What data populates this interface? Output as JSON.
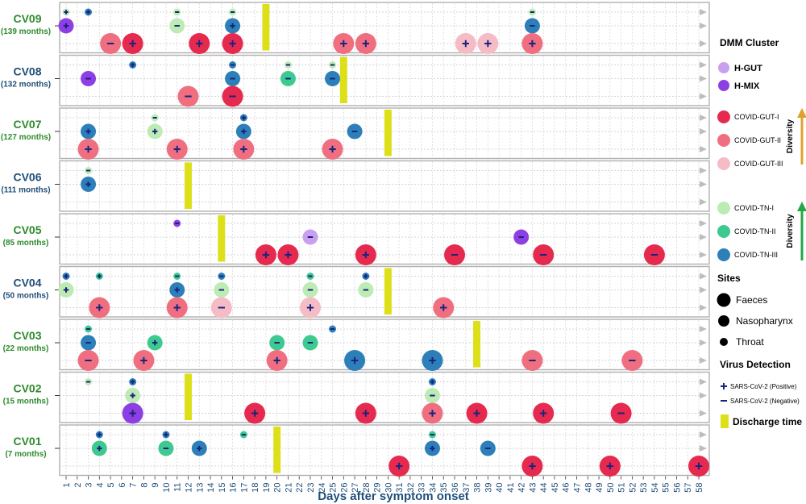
{
  "chart_data": {
    "type": "scatter",
    "xlabel": "Days after symptom onset",
    "x_ticks": [
      1,
      2,
      3,
      4,
      5,
      6,
      7,
      8,
      9,
      10,
      11,
      12,
      13,
      14,
      15,
      16,
      17,
      18,
      19,
      20,
      21,
      22,
      23,
      24,
      25,
      26,
      27,
      28,
      29,
      30,
      31,
      32,
      33,
      34,
      35,
      36,
      37,
      38,
      39,
      40,
      41,
      42,
      43,
      44,
      45,
      46,
      47,
      48,
      49,
      50,
      51,
      52,
      53,
      54,
      55,
      56,
      57,
      58
    ],
    "site_rows": [
      "Throat",
      "Nasopharynx",
      "Faeces"
    ],
    "patients": [
      {
        "id": "CV09",
        "age": "(139 months)",
        "discharge_day": 19,
        "samples": [
          {
            "site": "Throat",
            "day": 1,
            "cluster": "COVID-TN-I",
            "virus": "Positive"
          },
          {
            "site": "Throat",
            "day": 3,
            "cluster": "COVID-TN-III",
            "virus": "Positive"
          },
          {
            "site": "Throat",
            "day": 11,
            "cluster": "COVID-TN-I",
            "virus": "Negative"
          },
          {
            "site": "Throat",
            "day": 16,
            "cluster": "COVID-TN-I",
            "virus": "Negative"
          },
          {
            "site": "Throat",
            "day": 43,
            "cluster": "COVID-TN-I",
            "virus": "Negative"
          },
          {
            "site": "Nasopharynx",
            "day": 1,
            "cluster": "H-MIX",
            "virus": "Positive"
          },
          {
            "site": "Nasopharynx",
            "day": 11,
            "cluster": "COVID-TN-I",
            "virus": "Negative"
          },
          {
            "site": "Nasopharynx",
            "day": 16,
            "cluster": "COVID-TN-III",
            "virus": "Positive"
          },
          {
            "site": "Nasopharynx",
            "day": 43,
            "cluster": "COVID-TN-III",
            "virus": "Negative"
          },
          {
            "site": "Faeces",
            "day": 5,
            "cluster": "COVID-GUT-II",
            "virus": "Negative"
          },
          {
            "site": "Faeces",
            "day": 7,
            "cluster": "COVID-GUT-I",
            "virus": "Positive"
          },
          {
            "site": "Faeces",
            "day": 13,
            "cluster": "COVID-GUT-I",
            "virus": "Positive"
          },
          {
            "site": "Faeces",
            "day": 16,
            "cluster": "COVID-GUT-I",
            "virus": "Positive"
          },
          {
            "site": "Faeces",
            "day": 26,
            "cluster": "COVID-GUT-II",
            "virus": "Positive"
          },
          {
            "site": "Faeces",
            "day": 28,
            "cluster": "COVID-GUT-II",
            "virus": "Positive"
          },
          {
            "site": "Faeces",
            "day": 37,
            "cluster": "COVID-GUT-III",
            "virus": "Positive"
          },
          {
            "site": "Faeces",
            "day": 39,
            "cluster": "COVID-GUT-III",
            "virus": "Positive"
          },
          {
            "site": "Faeces",
            "day": 43,
            "cluster": "COVID-GUT-II",
            "virus": "Positive"
          }
        ]
      },
      {
        "id": "CV08",
        "age": "(132 months)",
        "discharge_day": 26,
        "samples": [
          {
            "site": "Throat",
            "day": 7,
            "cluster": "COVID-TN-III",
            "virus": "Positive"
          },
          {
            "site": "Throat",
            "day": 16,
            "cluster": "COVID-TN-III",
            "virus": "Negative"
          },
          {
            "site": "Throat",
            "day": 21,
            "cluster": "COVID-TN-I",
            "virus": "Negative"
          },
          {
            "site": "Throat",
            "day": 25,
            "cluster": "COVID-TN-I",
            "virus": "Negative"
          },
          {
            "site": "Nasopharynx",
            "day": 3,
            "cluster": "H-MIX",
            "virus": "Negative"
          },
          {
            "site": "Nasopharynx",
            "day": 16,
            "cluster": "COVID-TN-III",
            "virus": "Negative"
          },
          {
            "site": "Nasopharynx",
            "day": 21,
            "cluster": "COVID-TN-II",
            "virus": "Negative"
          },
          {
            "site": "Nasopharynx",
            "day": 25,
            "cluster": "COVID-TN-III",
            "virus": "Negative"
          },
          {
            "site": "Faeces",
            "day": 12,
            "cluster": "COVID-GUT-II",
            "virus": "Negative"
          },
          {
            "site": "Faeces",
            "day": 16,
            "cluster": "COVID-GUT-I",
            "virus": "Negative"
          }
        ]
      },
      {
        "id": "CV07",
        "age": "(127 months)",
        "discharge_day": 30,
        "samples": [
          {
            "site": "Throat",
            "day": 9,
            "cluster": "COVID-TN-I",
            "virus": "Negative"
          },
          {
            "site": "Throat",
            "day": 17,
            "cluster": "COVID-TN-III",
            "virus": "Positive"
          },
          {
            "site": "Nasopharynx",
            "day": 3,
            "cluster": "COVID-TN-III",
            "virus": "Positive"
          },
          {
            "site": "Nasopharynx",
            "day": 9,
            "cluster": "COVID-TN-I",
            "virus": "Positive"
          },
          {
            "site": "Nasopharynx",
            "day": 17,
            "cluster": "COVID-TN-III",
            "virus": "Positive"
          },
          {
            "site": "Nasopharynx",
            "day": 27,
            "cluster": "COVID-TN-III",
            "virus": "Negative"
          },
          {
            "site": "Faeces",
            "day": 3,
            "cluster": "COVID-GUT-II",
            "virus": "Positive"
          },
          {
            "site": "Faeces",
            "day": 11,
            "cluster": "COVID-GUT-II",
            "virus": "Positive"
          },
          {
            "site": "Faeces",
            "day": 17,
            "cluster": "COVID-GUT-II",
            "virus": "Positive"
          },
          {
            "site": "Faeces",
            "day": 25,
            "cluster": "COVID-GUT-II",
            "virus": "Positive"
          }
        ]
      },
      {
        "id": "CV06",
        "age": "(111 months)",
        "discharge_day": 12,
        "samples": [
          {
            "site": "Throat",
            "day": 3,
            "cluster": "COVID-TN-I",
            "virus": "Negative"
          },
          {
            "site": "Nasopharynx",
            "day": 3,
            "cluster": "COVID-TN-III",
            "virus": "Positive"
          }
        ]
      },
      {
        "id": "CV05",
        "age": "(85 months)",
        "discharge_day": 15,
        "samples": [
          {
            "site": "Throat",
            "day": 11,
            "cluster": "H-MIX",
            "virus": "Negative"
          },
          {
            "site": "Nasopharynx",
            "day": 23,
            "cluster": "H-GUT",
            "virus": "Negative"
          },
          {
            "site": "Nasopharynx",
            "day": 42,
            "cluster": "H-MIX",
            "virus": "Negative"
          },
          {
            "site": "Faeces",
            "day": 19,
            "cluster": "COVID-GUT-I",
            "virus": "Positive"
          },
          {
            "site": "Faeces",
            "day": 21,
            "cluster": "COVID-GUT-I",
            "virus": "Positive"
          },
          {
            "site": "Faeces",
            "day": 28,
            "cluster": "COVID-GUT-I",
            "virus": "Positive"
          },
          {
            "site": "Faeces",
            "day": 36,
            "cluster": "COVID-GUT-I",
            "virus": "Negative"
          },
          {
            "site": "Faeces",
            "day": 44,
            "cluster": "COVID-GUT-I",
            "virus": "Negative"
          },
          {
            "site": "Faeces",
            "day": 54,
            "cluster": "COVID-GUT-I",
            "virus": "Negative"
          }
        ]
      },
      {
        "id": "CV04",
        "age": "(50 months)",
        "discharge_day": 30,
        "samples": [
          {
            "site": "Throat",
            "day": 1,
            "cluster": "COVID-TN-III",
            "virus": "Positive"
          },
          {
            "site": "Throat",
            "day": 4,
            "cluster": "COVID-TN-II",
            "virus": "Positive"
          },
          {
            "site": "Throat",
            "day": 11,
            "cluster": "COVID-TN-II",
            "virus": "Negative"
          },
          {
            "site": "Throat",
            "day": 15,
            "cluster": "COVID-TN-III",
            "virus": "Negative"
          },
          {
            "site": "Throat",
            "day": 23,
            "cluster": "COVID-TN-II",
            "virus": "Negative"
          },
          {
            "site": "Throat",
            "day": 28,
            "cluster": "COVID-TN-III",
            "virus": "Positive"
          },
          {
            "site": "Nasopharynx",
            "day": 1,
            "cluster": "COVID-TN-I",
            "virus": "Positive"
          },
          {
            "site": "Nasopharynx",
            "day": 11,
            "cluster": "COVID-TN-III",
            "virus": "Positive"
          },
          {
            "site": "Nasopharynx",
            "day": 15,
            "cluster": "COVID-TN-I",
            "virus": "Negative"
          },
          {
            "site": "Nasopharynx",
            "day": 23,
            "cluster": "COVID-TN-I",
            "virus": "Negative"
          },
          {
            "site": "Nasopharynx",
            "day": 28,
            "cluster": "COVID-TN-I",
            "virus": "Negative"
          },
          {
            "site": "Faeces",
            "day": 4,
            "cluster": "COVID-GUT-II",
            "virus": "Positive"
          },
          {
            "site": "Faeces",
            "day": 11,
            "cluster": "COVID-GUT-II",
            "virus": "Positive"
          },
          {
            "site": "Faeces",
            "day": 15,
            "cluster": "COVID-GUT-III",
            "virus": "Negative"
          },
          {
            "site": "Faeces",
            "day": 23,
            "cluster": "COVID-GUT-III",
            "virus": "Positive"
          },
          {
            "site": "Faeces",
            "day": 35,
            "cluster": "COVID-GUT-II",
            "virus": "Positive"
          }
        ]
      },
      {
        "id": "CV03",
        "age": "(22 months)",
        "discharge_day": 38,
        "samples": [
          {
            "site": "Throat",
            "day": 3,
            "cluster": "COVID-TN-II",
            "virus": "Negative"
          },
          {
            "site": "Throat",
            "day": 25,
            "cluster": "COVID-TN-III",
            "virus": "Negative"
          },
          {
            "site": "Nasopharynx",
            "day": 3,
            "cluster": "COVID-TN-III",
            "virus": "Negative"
          },
          {
            "site": "Nasopharynx",
            "day": 9,
            "cluster": "COVID-TN-II",
            "virus": "Positive"
          },
          {
            "site": "Nasopharynx",
            "day": 20,
            "cluster": "COVID-TN-II",
            "virus": "Negative"
          },
          {
            "site": "Nasopharynx",
            "day": 23,
            "cluster": "COVID-TN-II",
            "virus": "Negative"
          },
          {
            "site": "Faeces",
            "day": 3,
            "cluster": "COVID-GUT-II",
            "virus": "Negative"
          },
          {
            "site": "Faeces",
            "day": 8,
            "cluster": "COVID-GUT-II",
            "virus": "Positive"
          },
          {
            "site": "Faeces",
            "day": 20,
            "cluster": "COVID-GUT-II",
            "virus": "Positive"
          },
          {
            "site": "Faeces",
            "day": 27,
            "cluster": "COVID-TN-III",
            "virus": "Positive"
          },
          {
            "site": "Faeces",
            "day": 34,
            "cluster": "COVID-TN-III",
            "virus": "Positive"
          },
          {
            "site": "Faeces",
            "day": 43,
            "cluster": "COVID-GUT-II",
            "virus": "Negative"
          },
          {
            "site": "Faeces",
            "day": 52,
            "cluster": "COVID-GUT-II",
            "virus": "Negative"
          }
        ]
      },
      {
        "id": "CV02",
        "age": "(15 months)",
        "discharge_day": 12,
        "samples": [
          {
            "site": "Throat",
            "day": 3,
            "cluster": "COVID-TN-I",
            "virus": "Negative"
          },
          {
            "site": "Throat",
            "day": 7,
            "cluster": "COVID-TN-III",
            "virus": "Positive"
          },
          {
            "site": "Throat",
            "day": 34,
            "cluster": "COVID-TN-III",
            "virus": "Positive"
          },
          {
            "site": "Nasopharynx",
            "day": 7,
            "cluster": "COVID-TN-I",
            "virus": "Positive"
          },
          {
            "site": "Nasopharynx",
            "day": 34,
            "cluster": "COVID-TN-I",
            "virus": "Negative"
          },
          {
            "site": "Faeces",
            "day": 7,
            "cluster": "H-MIX",
            "virus": "Positive"
          },
          {
            "site": "Faeces",
            "day": 18,
            "cluster": "COVID-GUT-I",
            "virus": "Positive"
          },
          {
            "site": "Faeces",
            "day": 28,
            "cluster": "COVID-GUT-I",
            "virus": "Positive"
          },
          {
            "site": "Faeces",
            "day": 34,
            "cluster": "COVID-GUT-II",
            "virus": "Positive"
          },
          {
            "site": "Faeces",
            "day": 38,
            "cluster": "COVID-GUT-I",
            "virus": "Positive"
          },
          {
            "site": "Faeces",
            "day": 44,
            "cluster": "COVID-GUT-I",
            "virus": "Positive"
          },
          {
            "site": "Faeces",
            "day": 51,
            "cluster": "COVID-GUT-I",
            "virus": "Negative"
          }
        ]
      },
      {
        "id": "CV01",
        "age": "(7 months)",
        "discharge_day": 20,
        "samples": [
          {
            "site": "Throat",
            "day": 4,
            "cluster": "COVID-TN-III",
            "virus": "Positive"
          },
          {
            "site": "Throat",
            "day": 10,
            "cluster": "COVID-TN-III",
            "virus": "Positive"
          },
          {
            "site": "Throat",
            "day": 17,
            "cluster": "COVID-TN-II",
            "virus": "Negative"
          },
          {
            "site": "Throat",
            "day": 34,
            "cluster": "COVID-TN-II",
            "virus": "Negative"
          },
          {
            "site": "Nasopharynx",
            "day": 4,
            "cluster": "COVID-TN-II",
            "virus": "Positive"
          },
          {
            "site": "Nasopharynx",
            "day": 10,
            "cluster": "COVID-TN-II",
            "virus": "Negative"
          },
          {
            "site": "Nasopharynx",
            "day": 13,
            "cluster": "COVID-TN-III",
            "virus": "Positive"
          },
          {
            "site": "Nasopharynx",
            "day": 34,
            "cluster": "COVID-TN-III",
            "virus": "Positive"
          },
          {
            "site": "Nasopharynx",
            "day": 39,
            "cluster": "COVID-TN-III",
            "virus": "Negative"
          },
          {
            "site": "Faeces",
            "day": 31,
            "cluster": "COVID-GUT-I",
            "virus": "Positive"
          },
          {
            "site": "Faeces",
            "day": 43,
            "cluster": "COVID-GUT-I",
            "virus": "Positive"
          },
          {
            "site": "Faeces",
            "day": 50,
            "cluster": "COVID-GUT-I",
            "virus": "Positive"
          },
          {
            "site": "Faeces",
            "day": 58,
            "cluster": "COVID-GUT-I",
            "virus": "Positive"
          }
        ]
      }
    ],
    "cluster_colors": {
      "H-GUT": "#c9a0ee",
      "H-MIX": "#8e3fe3",
      "COVID-GUT-I": "#e62a4f",
      "COVID-GUT-II": "#ef6f81",
      "COVID-GUT-III": "#f6bcc6",
      "COVID-TN-I": "#bdebb4",
      "COVID-TN-II": "#3ec990",
      "COVID-TN-III": "#2c7fb8"
    },
    "legend": {
      "cluster_title": "DMM Cluster",
      "healthy_items": [
        "H-GUT",
        "H-MIX"
      ],
      "gut_items": [
        "COVID-GUT-I",
        "COVID-GUT-II",
        "COVID-GUT-III"
      ],
      "tn_items": [
        "COVID-TN-I",
        "COVID-TN-II",
        "COVID-TN-III"
      ],
      "diversity_label": "Diversity",
      "diversity_gut_color": "#e0a030",
      "diversity_tn_color": "#22a844",
      "sites_title": "Sites",
      "sites": [
        "Faeces",
        "Nasopharynx",
        "Throat"
      ],
      "virus_title": "Virus Detection",
      "virus_positive": "SARS-CoV-2 (Positive)",
      "virus_negative": "SARS-CoV-2 (Negative)",
      "discharge_label": "Discharge time"
    },
    "discharge_color": "#dde019",
    "patient_label_colors": {
      "CV09": "#2e8b2e",
      "CV08": "#1f4e79",
      "CV07": "#2e8b2e",
      "CV06": "#1f4e79",
      "CV05": "#2e8b2e",
      "CV04": "#1f4e79",
      "CV03": "#2e8b2e",
      "CV02": "#2e8b2e",
      "CV01": "#2e8b2e"
    },
    "virus_mark_color": "#1a237e"
  }
}
